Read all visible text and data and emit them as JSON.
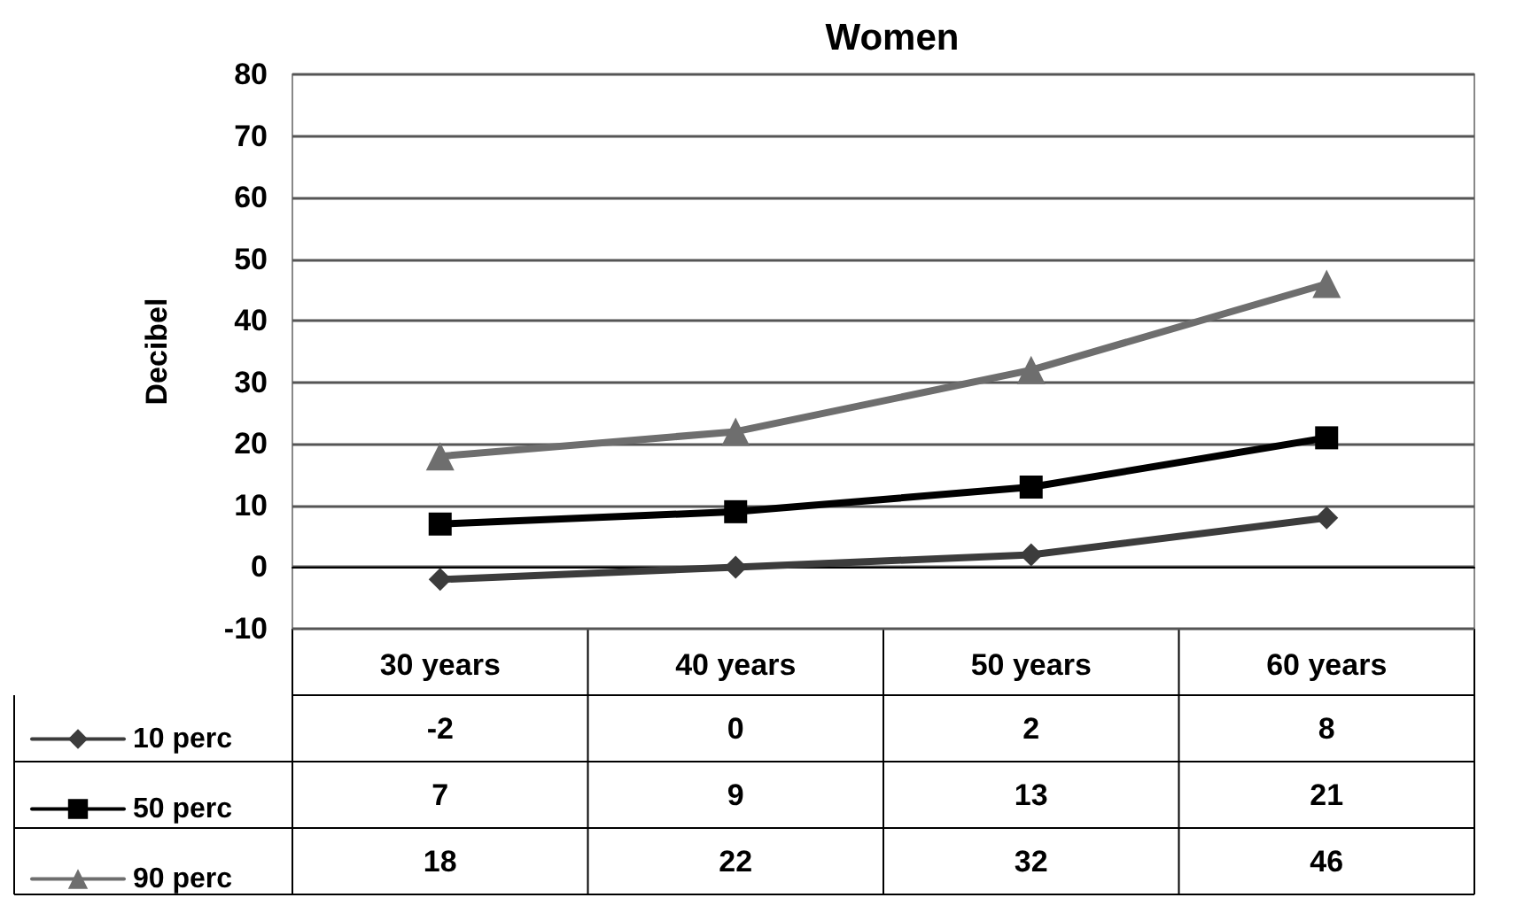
{
  "chart_data": {
    "type": "line",
    "title": "Women",
    "ylabel": "Decibel",
    "categories": [
      "30 years",
      "40 years",
      "50 years",
      "60 years"
    ],
    "series": [
      {
        "name": "10 perc",
        "color": "#3c3c3c",
        "marker": "diamond",
        "values": [
          -2,
          0,
          2,
          8
        ]
      },
      {
        "name": "50 perc",
        "color": "#000000",
        "marker": "square",
        "values": [
          7,
          9,
          13,
          21
        ]
      },
      {
        "name": "90 perc",
        "color": "#6e6e6e",
        "marker": "triangle",
        "values": [
          18,
          22,
          32,
          46
        ]
      }
    ],
    "ylim": [
      -10,
      80
    ],
    "yticks": [
      -10,
      0,
      10,
      20,
      30,
      40,
      50,
      60,
      70,
      80
    ],
    "grid": "y",
    "legend": "bottom",
    "data_labels": true
  }
}
